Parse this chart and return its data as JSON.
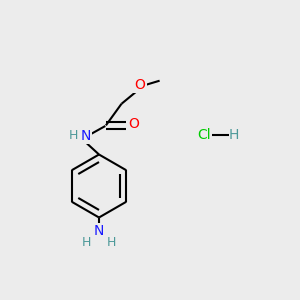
{
  "background_color": "#ececec",
  "atom_colors": {
    "C": "#000000",
    "N": "#1a1aff",
    "N_light": "#4d9999",
    "O": "#ff0000",
    "Cl": "#00cc00",
    "H": "#4d9999"
  },
  "bond_color": "#000000",
  "bond_width": 1.5,
  "figsize": [
    3.0,
    3.0
  ],
  "dpi": 100,
  "xlim": [
    0,
    10
  ],
  "ylim": [
    0,
    10
  ]
}
